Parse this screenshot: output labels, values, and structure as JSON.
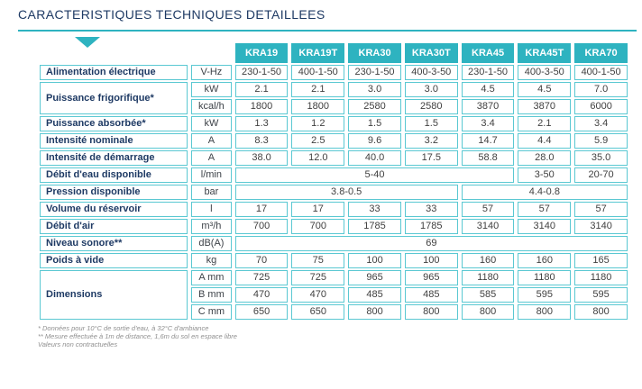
{
  "page": {
    "title": "CARACTERISTIQUES TECHNIQUES DETAILLEES"
  },
  "colors": {
    "accent_teal": "#2eb3c0",
    "grid_border_teal": "#5ac8d2",
    "label_navy": "#1e3a64",
    "value_text": "#404040",
    "footnote_gray": "#8f8f8f"
  },
  "table": {
    "models": [
      "KRA19",
      "KRA19T",
      "KRA30",
      "KRA30T",
      "KRA45",
      "KRA45T",
      "KRA70"
    ],
    "body": [
      {
        "label": {
          "text": "Alimentation électrique",
          "rowspan": 1
        },
        "unit": "V-Hz",
        "values": [
          "230-1-50",
          "400-1-50",
          "230-1-50",
          "400-3-50",
          "230-1-50",
          "400-3-50",
          "400-1-50"
        ]
      },
      {
        "label": {
          "text": "Puissance frigorifique*",
          "rowspan": 2
        },
        "unit": "kW",
        "values": [
          "2.1",
          "2.1",
          "3.0",
          "3.0",
          "4.5",
          "4.5",
          "7.0"
        ]
      },
      {
        "unit": "kcal/h",
        "values": [
          "1800",
          "1800",
          "2580",
          "2580",
          "3870",
          "3870",
          "6000"
        ]
      },
      {
        "label": {
          "text": "Puissance absorbée*",
          "rowspan": 1
        },
        "unit": "kW",
        "values": [
          "1.3",
          "1.2",
          "1.5",
          "1.5",
          "3.4",
          "2.1",
          "3.4"
        ]
      },
      {
        "label": {
          "text": "Intensité nominale",
          "rowspan": 1
        },
        "unit": "A",
        "values": [
          "8.3",
          "2.5",
          "9.6",
          "3.2",
          "14.7",
          "4.4",
          "5.9"
        ]
      },
      {
        "label": {
          "text": "Intensité de démarrage",
          "rowspan": 1
        },
        "unit": "A",
        "values": [
          "38.0",
          "12.0",
          "40.0",
          "17.5",
          "58.8",
          "28.0",
          "35.0"
        ]
      },
      {
        "label": {
          "text": "Débit d'eau disponible",
          "rowspan": 1
        },
        "unit": "l/min",
        "values": [
          {
            "text": "5-40",
            "span": 5
          },
          {
            "text": "3-50",
            "span": 1
          },
          {
            "text": "20-70",
            "span": 1
          }
        ]
      },
      {
        "label": {
          "text": "Pression disponible",
          "rowspan": 1
        },
        "unit": "bar",
        "values": [
          {
            "text": "3.8-0.5",
            "span": 4
          },
          {
            "text": "4.4-0.8",
            "span": 3
          }
        ]
      },
      {
        "label": {
          "text": "Volume du réservoir",
          "rowspan": 1
        },
        "unit": "l",
        "values": [
          "17",
          "17",
          "33",
          "33",
          "57",
          "57",
          "57"
        ]
      },
      {
        "label": {
          "text": "Débit d'air",
          "rowspan": 1
        },
        "unit": "m³/h",
        "values": [
          "700",
          "700",
          "1785",
          "1785",
          "3140",
          "3140",
          "3140"
        ]
      },
      {
        "label": {
          "text": "Niveau sonore**",
          "rowspan": 1
        },
        "unit": "dB(A)",
        "values": [
          {
            "text": "69",
            "span": 7
          }
        ]
      },
      {
        "label": {
          "text": "Poids à vide",
          "rowspan": 1
        },
        "unit": "kg",
        "values": [
          "70",
          "75",
          "100",
          "100",
          "160",
          "160",
          "165"
        ]
      },
      {
        "label": {
          "text": "Dimensions",
          "rowspan": 3
        },
        "unit": "A mm",
        "values": [
          "725",
          "725",
          "965",
          "965",
          "1180",
          "1180",
          "1180"
        ]
      },
      {
        "unit": "B mm",
        "values": [
          "470",
          "470",
          "485",
          "485",
          "585",
          "595",
          "595"
        ]
      },
      {
        "unit": "C mm",
        "values": [
          "650",
          "650",
          "800",
          "800",
          "800",
          "800",
          "800"
        ]
      }
    ]
  },
  "footnotes": [
    "* Données pour 10°C de sortie d'eau, à 32°C d'ambiance",
    "** Mesure effectuée à 1m de distance, 1,6m du sol en espace libre",
    "Valeurs non contractuelles"
  ]
}
